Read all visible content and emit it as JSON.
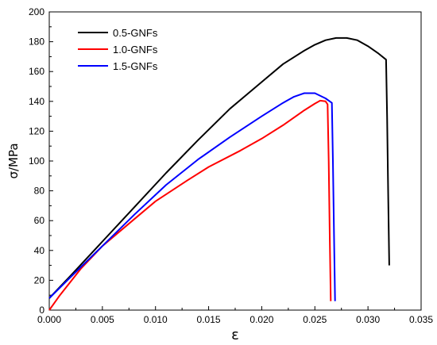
{
  "chart_data": {
    "type": "line",
    "title": "",
    "xlabel": "ε",
    "ylabel": "σ/MPa",
    "xlim": [
      0,
      0.035
    ],
    "ylim": [
      0,
      200
    ],
    "x_ticks": [
      "0.000",
      "0.005",
      "0.010",
      "0.015",
      "0.020",
      "0.025",
      "0.030",
      "0.035"
    ],
    "y_ticks": [
      "0",
      "20",
      "40",
      "60",
      "80",
      "100",
      "120",
      "140",
      "160",
      "180",
      "200"
    ],
    "grid": false,
    "legend_position": "top-left",
    "series": [
      {
        "name": "0.5-GNFs",
        "color": "#000000",
        "points": [
          [
            0.0,
            8
          ],
          [
            0.002,
            23
          ],
          [
            0.005,
            46
          ],
          [
            0.008,
            69
          ],
          [
            0.011,
            92
          ],
          [
            0.014,
            114
          ],
          [
            0.017,
            135
          ],
          [
            0.02,
            153
          ],
          [
            0.022,
            165
          ],
          [
            0.024,
            174
          ],
          [
            0.025,
            178
          ],
          [
            0.026,
            181
          ],
          [
            0.027,
            182.5
          ],
          [
            0.028,
            182.5
          ],
          [
            0.029,
            181
          ],
          [
            0.03,
            177
          ],
          [
            0.031,
            172
          ],
          [
            0.0317,
            168
          ],
          [
            0.0318,
            130
          ],
          [
            0.0319,
            80
          ],
          [
            0.032,
            30
          ]
        ]
      },
      {
        "name": "1.0-GNFs",
        "color": "#ff0000",
        "points": [
          [
            0.0,
            0
          ],
          [
            0.001,
            10
          ],
          [
            0.003,
            28
          ],
          [
            0.005,
            43
          ],
          [
            0.008,
            61
          ],
          [
            0.01,
            73
          ],
          [
            0.013,
            87
          ],
          [
            0.015,
            96
          ],
          [
            0.018,
            107
          ],
          [
            0.02,
            115
          ],
          [
            0.022,
            124
          ],
          [
            0.024,
            134
          ],
          [
            0.025,
            138.5
          ],
          [
            0.0255,
            140.5
          ],
          [
            0.026,
            140
          ],
          [
            0.0262,
            138
          ],
          [
            0.0263,
            100
          ],
          [
            0.0264,
            50
          ],
          [
            0.0265,
            6
          ]
        ]
      },
      {
        "name": "1.5-GNFs",
        "color": "#0000ff",
        "points": [
          [
            0.0,
            8
          ],
          [
            0.002,
            22
          ],
          [
            0.005,
            43
          ],
          [
            0.008,
            64
          ],
          [
            0.011,
            84
          ],
          [
            0.014,
            101
          ],
          [
            0.017,
            116
          ],
          [
            0.02,
            130
          ],
          [
            0.022,
            139
          ],
          [
            0.023,
            143
          ],
          [
            0.024,
            145.5
          ],
          [
            0.025,
            145.5
          ],
          [
            0.026,
            142
          ],
          [
            0.0266,
            139
          ],
          [
            0.0267,
            100
          ],
          [
            0.0268,
            50
          ],
          [
            0.0269,
            6
          ]
        ]
      }
    ]
  }
}
